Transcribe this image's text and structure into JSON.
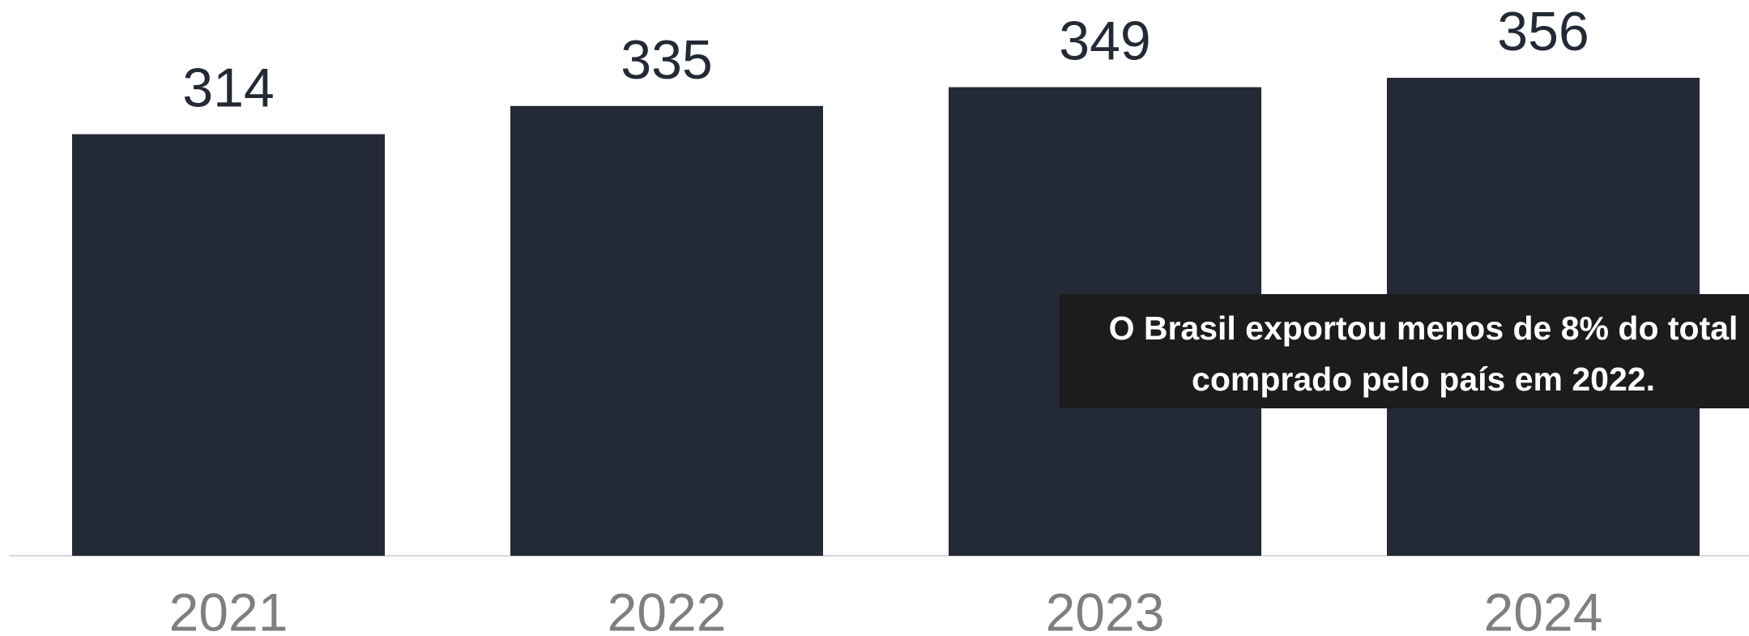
{
  "chart_data": {
    "type": "bar",
    "categories": [
      "2021",
      "2022",
      "2023",
      "2024"
    ],
    "values": [
      314,
      335,
      349,
      356
    ],
    "color": "#232a35",
    "annotation": [
      "O Brasil exportou menos de 8% do total",
      "comprado pelo país em 2022."
    ]
  }
}
